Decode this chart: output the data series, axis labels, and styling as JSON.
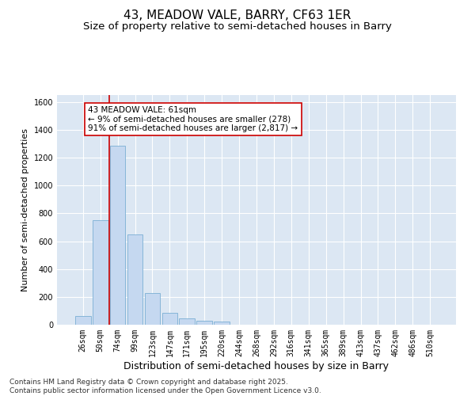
{
  "title": "43, MEADOW VALE, BARRY, CF63 1ER",
  "subtitle": "Size of property relative to semi-detached houses in Barry",
  "xlabel": "Distribution of semi-detached houses by size in Barry",
  "ylabel": "Number of semi-detached properties",
  "categories": [
    "26sqm",
    "50sqm",
    "74sqm",
    "99sqm",
    "123sqm",
    "147sqm",
    "171sqm",
    "195sqm",
    "220sqm",
    "244sqm",
    "268sqm",
    "292sqm",
    "316sqm",
    "341sqm",
    "365sqm",
    "389sqm",
    "413sqm",
    "437sqm",
    "462sqm",
    "486sqm",
    "510sqm"
  ],
  "values": [
    60,
    750,
    1285,
    650,
    230,
    85,
    45,
    30,
    20,
    0,
    0,
    0,
    0,
    0,
    0,
    0,
    0,
    0,
    0,
    0,
    0
  ],
  "bar_color": "#c5d8f0",
  "bar_edge_color": "#7bafd4",
  "vline_x_idx": 1.5,
  "vline_color": "#cc0000",
  "annotation_text": "43 MEADOW VALE: 61sqm\n← 9% of semi-detached houses are smaller (278)\n91% of semi-detached houses are larger (2,817) →",
  "annotation_box_facecolor": "#ffffff",
  "annotation_box_edgecolor": "#cc0000",
  "ylim": [
    0,
    1650
  ],
  "yticks": [
    0,
    200,
    400,
    600,
    800,
    1000,
    1200,
    1400,
    1600
  ],
  "fig_background": "#ffffff",
  "plot_background": "#dce7f3",
  "grid_color": "#ffffff",
  "footer_line1": "Contains HM Land Registry data © Crown copyright and database right 2025.",
  "footer_line2": "Contains public sector information licensed under the Open Government Licence v3.0.",
  "title_fontsize": 11,
  "subtitle_fontsize": 9.5,
  "tick_fontsize": 7,
  "ylabel_fontsize": 8,
  "xlabel_fontsize": 9,
  "annotation_fontsize": 7.5,
  "footer_fontsize": 6.5
}
